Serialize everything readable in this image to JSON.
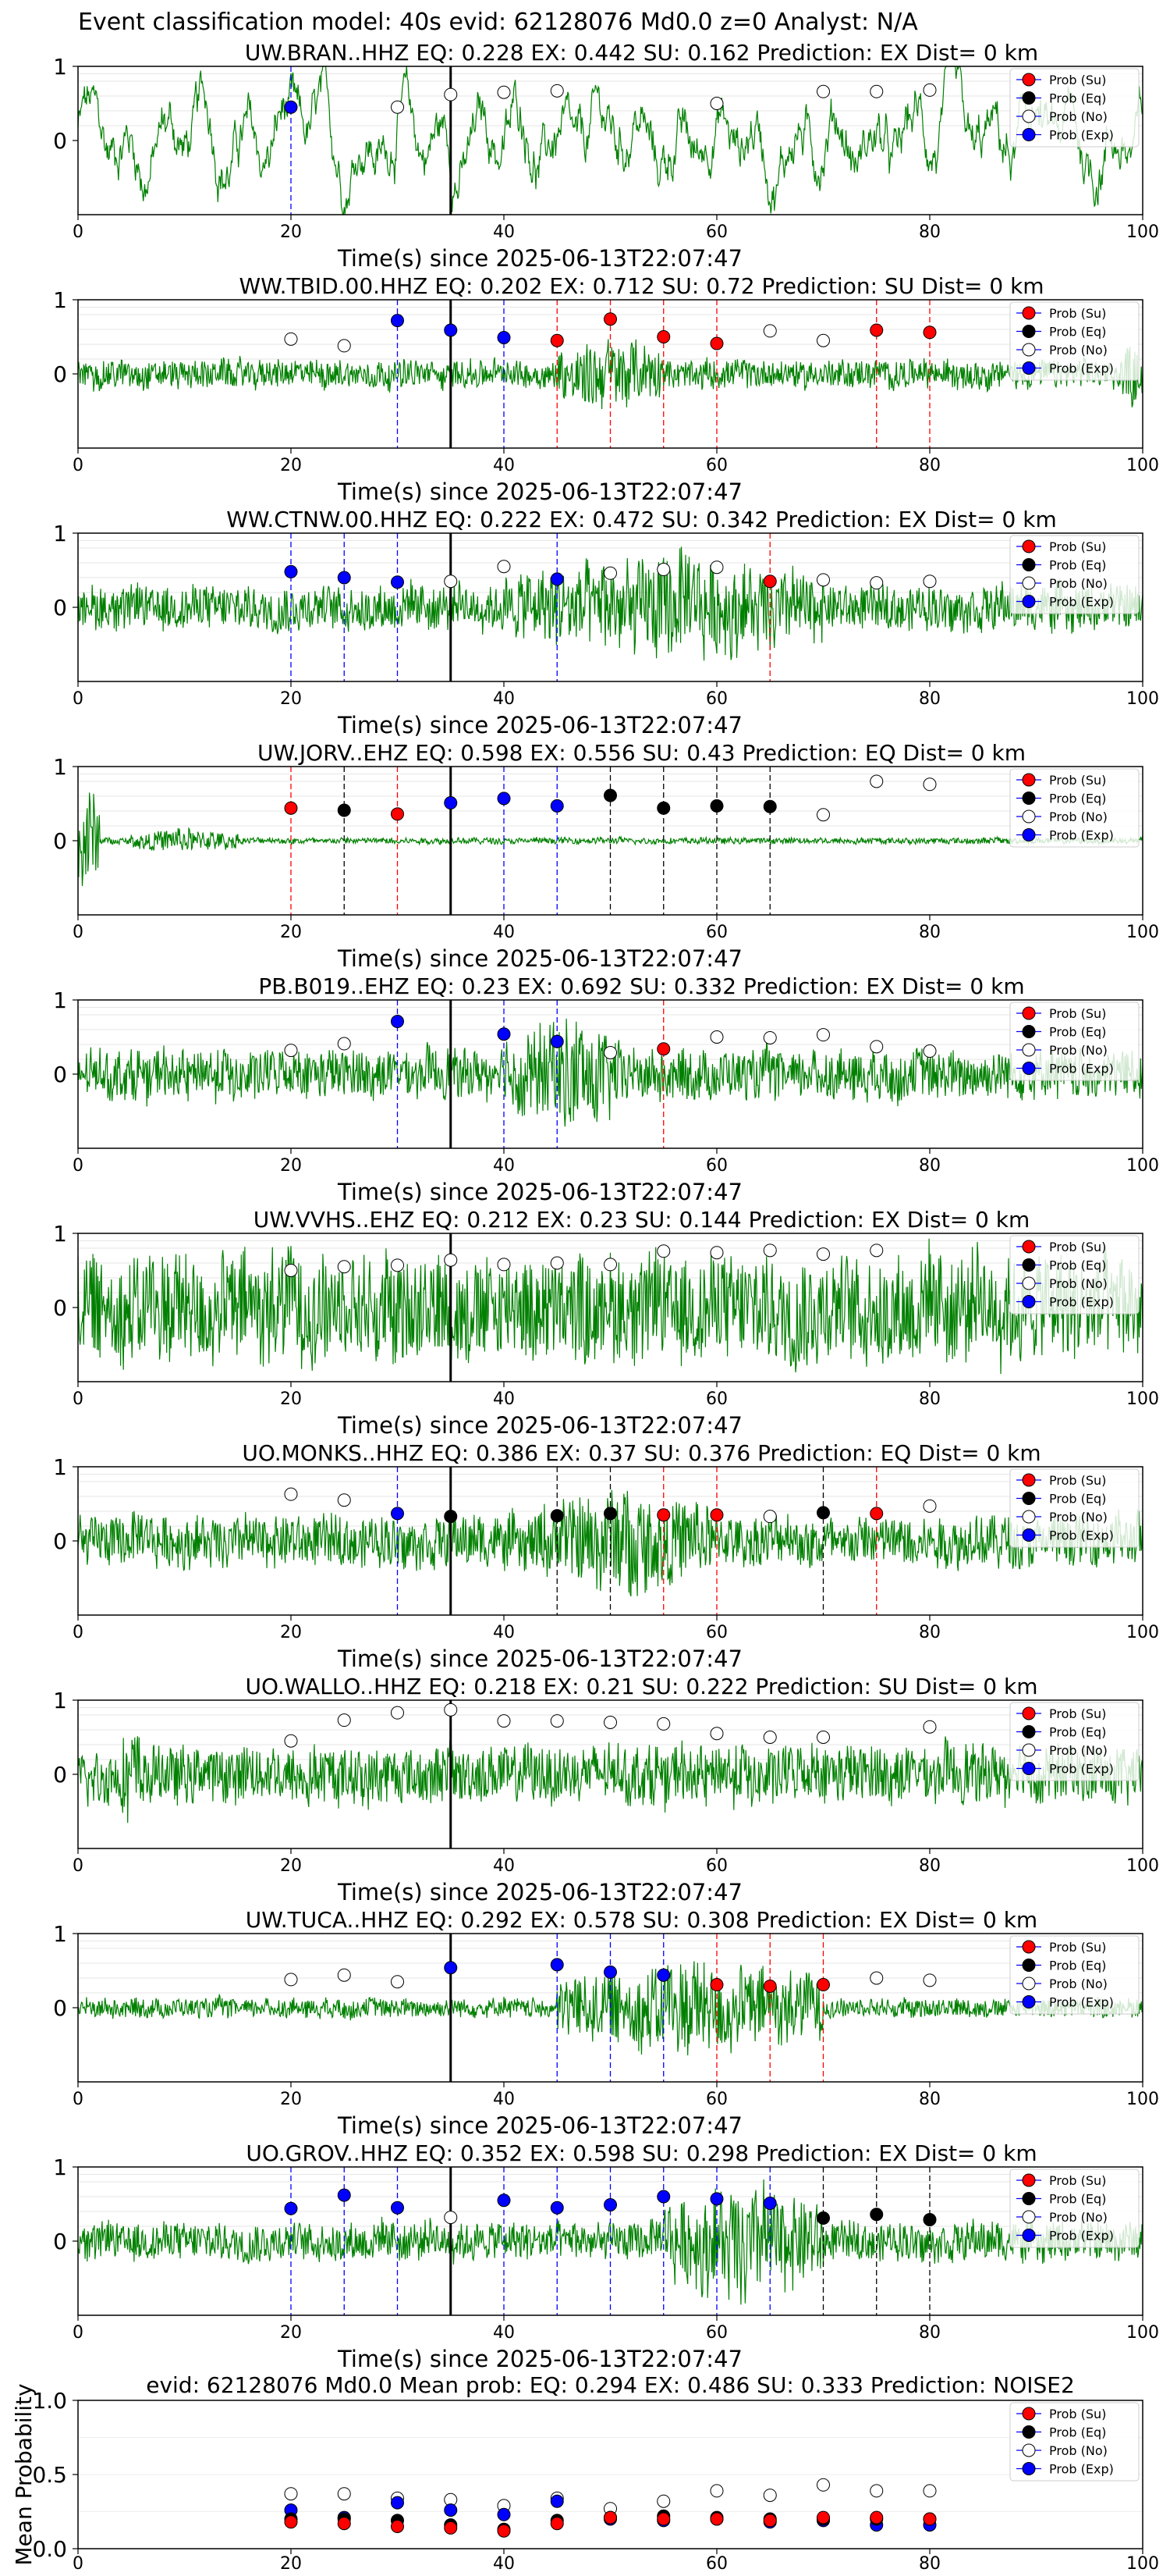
{
  "suptitle": "Event classification model: 40s evid: 62128076 Md0.0 z=0 Analyst: N/A",
  "x_label": "Time(s) since 2025-06-13T22:07:47",
  "x_ticks": [
    "0",
    "20",
    "40",
    "60",
    "80",
    "100"
  ],
  "y_ticks": [
    "0",
    "1"
  ],
  "legend_labels": [
    "Prob (Su)",
    "Prob (Eq)",
    "Prob (No)",
    "Prob (Exp)"
  ],
  "colors": {
    "waveform": "#008000",
    "su": "#ff0000",
    "eq": "#000000",
    "no": "#ffffff",
    "exp": "#0000ff",
    "origin_line": "#000000"
  },
  "chart_data": [
    {
      "type": "line",
      "station": "UW.BRAN..HHZ",
      "title": "UW.BRAN..HHZ   EQ: 0.228  EX: 0.442  SU: 0.162   Prediction: EX    Dist= 0 km",
      "xlim": [
        0,
        100
      ],
      "ylim": [
        -1,
        1
      ],
      "origin_time": 35,
      "legend": "top-right",
      "waveform": {
        "amplitude": 0.7,
        "style": "low_freq",
        "bursts": []
      },
      "probability_points": [
        {
          "x": 20,
          "y": 0.45,
          "class": "exp"
        },
        {
          "x": 30,
          "y": 0.45,
          "class": "no"
        },
        {
          "x": 35,
          "y": 0.62,
          "class": "no"
        },
        {
          "x": 40,
          "y": 0.65,
          "class": "no"
        },
        {
          "x": 45,
          "y": 0.67,
          "class": "no"
        },
        {
          "x": 60,
          "y": 0.5,
          "class": "no"
        },
        {
          "x": 70,
          "y": 0.66,
          "class": "no"
        },
        {
          "x": 75,
          "y": 0.66,
          "class": "no"
        },
        {
          "x": 80,
          "y": 0.68,
          "class": "no"
        }
      ]
    },
    {
      "type": "line",
      "station": "WW.TBID.00.HHZ",
      "title": "WW.TBID.00.HHZ   EQ: 0.202  EX: 0.712  SU: 0.72   Prediction: SU    Dist= 0 km",
      "xlim": [
        0,
        100
      ],
      "ylim": [
        -1,
        1
      ],
      "origin_time": 35,
      "legend": "top-right",
      "waveform": {
        "amplitude": 0.22,
        "style": "noise",
        "bursts": [
          [
            45,
            55,
            0.6
          ],
          [
            98,
            100,
            0.5
          ]
        ]
      },
      "probability_points": [
        {
          "x": 20,
          "y": 0.47,
          "class": "no"
        },
        {
          "x": 25,
          "y": 0.38,
          "class": "no"
        },
        {
          "x": 30,
          "y": 0.72,
          "class": "exp"
        },
        {
          "x": 35,
          "y": 0.59,
          "class": "exp"
        },
        {
          "x": 40,
          "y": 0.49,
          "class": "exp"
        },
        {
          "x": 45,
          "y": 0.45,
          "class": "su"
        },
        {
          "x": 50,
          "y": 0.74,
          "class": "su"
        },
        {
          "x": 55,
          "y": 0.5,
          "class": "su"
        },
        {
          "x": 60,
          "y": 0.41,
          "class": "su"
        },
        {
          "x": 65,
          "y": 0.58,
          "class": "no"
        },
        {
          "x": 70,
          "y": 0.45,
          "class": "no"
        },
        {
          "x": 75,
          "y": 0.59,
          "class": "su"
        },
        {
          "x": 80,
          "y": 0.56,
          "class": "su"
        }
      ]
    },
    {
      "type": "line",
      "station": "WW.CTNW.00.HHZ",
      "title": "WW.CTNW.00.HHZ   EQ: 0.222  EX: 0.472  SU: 0.342   Prediction: EX    Dist= 0 km",
      "xlim": [
        0,
        100
      ],
      "ylim": [
        -1,
        1
      ],
      "origin_time": 35,
      "legend": "top-right",
      "waveform": {
        "amplitude": 0.35,
        "style": "noise",
        "bursts": [
          [
            40,
            70,
            0.85
          ]
        ]
      },
      "probability_points": [
        {
          "x": 20,
          "y": 0.48,
          "class": "exp"
        },
        {
          "x": 25,
          "y": 0.4,
          "class": "exp"
        },
        {
          "x": 30,
          "y": 0.34,
          "class": "exp"
        },
        {
          "x": 35,
          "y": 0.35,
          "class": "no"
        },
        {
          "x": 40,
          "y": 0.55,
          "class": "no"
        },
        {
          "x": 45,
          "y": 0.38,
          "class": "exp"
        },
        {
          "x": 50,
          "y": 0.46,
          "class": "no"
        },
        {
          "x": 55,
          "y": 0.51,
          "class": "no"
        },
        {
          "x": 60,
          "y": 0.54,
          "class": "no"
        },
        {
          "x": 65,
          "y": 0.35,
          "class": "su"
        },
        {
          "x": 70,
          "y": 0.37,
          "class": "no"
        },
        {
          "x": 75,
          "y": 0.33,
          "class": "no"
        },
        {
          "x": 80,
          "y": 0.35,
          "class": "no"
        }
      ]
    },
    {
      "type": "line",
      "station": "UW.JORV..EHZ",
      "title": "UW.JORV..EHZ   EQ: 0.598  EX: 0.556  SU: 0.43   Prediction: EQ    Dist= 0 km",
      "xlim": [
        0,
        100
      ],
      "ylim": [
        -1,
        1
      ],
      "origin_time": 35,
      "legend": "top-right",
      "waveform": {
        "amplitude": 0.05,
        "style": "noise",
        "bursts": [
          [
            0,
            2,
            0.9
          ],
          [
            5,
            15,
            0.2
          ]
        ]
      },
      "probability_points": [
        {
          "x": 20,
          "y": 0.44,
          "class": "su"
        },
        {
          "x": 25,
          "y": 0.41,
          "class": "eq"
        },
        {
          "x": 30,
          "y": 0.36,
          "class": "su"
        },
        {
          "x": 35,
          "y": 0.51,
          "class": "exp"
        },
        {
          "x": 40,
          "y": 0.57,
          "class": "exp"
        },
        {
          "x": 45,
          "y": 0.47,
          "class": "exp"
        },
        {
          "x": 50,
          "y": 0.61,
          "class": "eq"
        },
        {
          "x": 55,
          "y": 0.44,
          "class": "eq"
        },
        {
          "x": 60,
          "y": 0.47,
          "class": "eq"
        },
        {
          "x": 65,
          "y": 0.46,
          "class": "eq"
        },
        {
          "x": 70,
          "y": 0.35,
          "class": "no"
        },
        {
          "x": 75,
          "y": 0.8,
          "class": "no"
        },
        {
          "x": 80,
          "y": 0.76,
          "class": "no"
        }
      ]
    },
    {
      "type": "line",
      "station": "PB.B019..EHZ",
      "title": "PB.B019..EHZ   EQ: 0.23  EX: 0.692  SU: 0.332   Prediction: EX    Dist= 0 km",
      "xlim": [
        0,
        100
      ],
      "ylim": [
        -1,
        1
      ],
      "origin_time": 35,
      "legend": "top-right",
      "waveform": {
        "amplitude": 0.38,
        "style": "noise",
        "bursts": [
          [
            40,
            52,
            0.9
          ]
        ]
      },
      "probability_points": [
        {
          "x": 20,
          "y": 0.32,
          "class": "no"
        },
        {
          "x": 25,
          "y": 0.41,
          "class": "no"
        },
        {
          "x": 30,
          "y": 0.71,
          "class": "exp"
        },
        {
          "x": 40,
          "y": 0.54,
          "class": "exp"
        },
        {
          "x": 45,
          "y": 0.44,
          "class": "exp"
        },
        {
          "x": 50,
          "y": 0.29,
          "class": "no"
        },
        {
          "x": 55,
          "y": 0.34,
          "class": "su"
        },
        {
          "x": 60,
          "y": 0.5,
          "class": "no"
        },
        {
          "x": 65,
          "y": 0.49,
          "class": "no"
        },
        {
          "x": 70,
          "y": 0.53,
          "class": "no"
        },
        {
          "x": 75,
          "y": 0.37,
          "class": "no"
        },
        {
          "x": 80,
          "y": 0.31,
          "class": "no"
        }
      ]
    },
    {
      "type": "line",
      "station": "UW.VVHS..EHZ",
      "title": "UW.VVHS..EHZ   EQ: 0.212  EX: 0.23  SU: 0.144   Prediction: EX    Dist= 0 km",
      "xlim": [
        0,
        100
      ],
      "ylim": [
        -1,
        1
      ],
      "origin_time": 35,
      "legend": "top-right",
      "waveform": {
        "amplitude": 0.85,
        "style": "noise",
        "bursts": []
      },
      "probability_points": [
        {
          "x": 20,
          "y": 0.5,
          "class": "no"
        },
        {
          "x": 25,
          "y": 0.55,
          "class": "no"
        },
        {
          "x": 30,
          "y": 0.57,
          "class": "no"
        },
        {
          "x": 35,
          "y": 0.64,
          "class": "no"
        },
        {
          "x": 40,
          "y": 0.58,
          "class": "no"
        },
        {
          "x": 45,
          "y": 0.6,
          "class": "no"
        },
        {
          "x": 50,
          "y": 0.58,
          "class": "no"
        },
        {
          "x": 55,
          "y": 0.76,
          "class": "no"
        },
        {
          "x": 60,
          "y": 0.74,
          "class": "no"
        },
        {
          "x": 65,
          "y": 0.77,
          "class": "no"
        },
        {
          "x": 70,
          "y": 0.72,
          "class": "no"
        },
        {
          "x": 75,
          "y": 0.77,
          "class": "no"
        }
      ]
    },
    {
      "type": "line",
      "station": "UO.MONKS..HHZ",
      "title": "UO.MONKS..HHZ   EQ: 0.386  EX: 0.37  SU: 0.376   Prediction: EQ    Dist= 0 km",
      "xlim": [
        0,
        100
      ],
      "ylim": [
        -1,
        1
      ],
      "origin_time": 35,
      "legend": "top-right",
      "waveform": {
        "amplitude": 0.4,
        "style": "noise",
        "bursts": [
          [
            43,
            60,
            0.85
          ]
        ]
      },
      "probability_points": [
        {
          "x": 20,
          "y": 0.63,
          "class": "no"
        },
        {
          "x": 25,
          "y": 0.55,
          "class": "no"
        },
        {
          "x": 30,
          "y": 0.37,
          "class": "exp"
        },
        {
          "x": 35,
          "y": 0.33,
          "class": "eq"
        },
        {
          "x": 45,
          "y": 0.34,
          "class": "eq"
        },
        {
          "x": 50,
          "y": 0.37,
          "class": "eq"
        },
        {
          "x": 55,
          "y": 0.35,
          "class": "su"
        },
        {
          "x": 60,
          "y": 0.35,
          "class": "su"
        },
        {
          "x": 65,
          "y": 0.33,
          "class": "no"
        },
        {
          "x": 70,
          "y": 0.38,
          "class": "eq"
        },
        {
          "x": 75,
          "y": 0.37,
          "class": "su"
        },
        {
          "x": 80,
          "y": 0.47,
          "class": "no"
        }
      ]
    },
    {
      "type": "line",
      "station": "UO.WALLO..HHZ",
      "title": "UO.WALLO..HHZ   EQ: 0.218  EX: 0.21  SU: 0.222   Prediction: SU    Dist= 0 km",
      "xlim": [
        0,
        100
      ],
      "ylim": [
        -1,
        1
      ],
      "origin_time": 35,
      "legend": "top-right",
      "waveform": {
        "amplitude": 0.45,
        "style": "noise",
        "bursts": [
          [
            4,
            6,
            0.95
          ]
        ]
      },
      "probability_points": [
        {
          "x": 20,
          "y": 0.45,
          "class": "no"
        },
        {
          "x": 25,
          "y": 0.73,
          "class": "no"
        },
        {
          "x": 30,
          "y": 0.83,
          "class": "no"
        },
        {
          "x": 35,
          "y": 0.87,
          "class": "no"
        },
        {
          "x": 40,
          "y": 0.72,
          "class": "no"
        },
        {
          "x": 45,
          "y": 0.72,
          "class": "no"
        },
        {
          "x": 50,
          "y": 0.7,
          "class": "no"
        },
        {
          "x": 55,
          "y": 0.68,
          "class": "no"
        },
        {
          "x": 60,
          "y": 0.55,
          "class": "no"
        },
        {
          "x": 65,
          "y": 0.5,
          "class": "no"
        },
        {
          "x": 70,
          "y": 0.5,
          "class": "no"
        },
        {
          "x": 80,
          "y": 0.64,
          "class": "no"
        }
      ]
    },
    {
      "type": "line",
      "station": "UW.TUCA..HHZ",
      "title": "UW.TUCA..HHZ   EQ: 0.292  EX: 0.578  SU: 0.308   Prediction: EX    Dist= 0 km",
      "xlim": [
        0,
        100
      ],
      "ylim": [
        -1,
        1
      ],
      "origin_time": 35,
      "legend": "top-right",
      "waveform": {
        "amplitude": 0.15,
        "style": "noise",
        "bursts": [
          [
            45,
            70,
            0.75
          ]
        ]
      },
      "probability_points": [
        {
          "x": 20,
          "y": 0.38,
          "class": "no"
        },
        {
          "x": 25,
          "y": 0.44,
          "class": "no"
        },
        {
          "x": 30,
          "y": 0.35,
          "class": "no"
        },
        {
          "x": 35,
          "y": 0.54,
          "class": "exp"
        },
        {
          "x": 45,
          "y": 0.58,
          "class": "exp"
        },
        {
          "x": 50,
          "y": 0.48,
          "class": "exp"
        },
        {
          "x": 55,
          "y": 0.44,
          "class": "exp"
        },
        {
          "x": 60,
          "y": 0.31,
          "class": "su"
        },
        {
          "x": 65,
          "y": 0.29,
          "class": "su"
        },
        {
          "x": 70,
          "y": 0.31,
          "class": "su"
        },
        {
          "x": 75,
          "y": 0.4,
          "class": "no"
        },
        {
          "x": 80,
          "y": 0.37,
          "class": "no"
        }
      ]
    },
    {
      "type": "line",
      "station": "UO.GROV..HHZ",
      "title": "UO.GROV..HHZ   EQ: 0.352  EX: 0.598  SU: 0.298   Prediction: EX    Dist= 0 km",
      "xlim": [
        0,
        100
      ],
      "ylim": [
        -1,
        1
      ],
      "origin_time": 35,
      "legend": "top-right",
      "waveform": {
        "amplitude": 0.3,
        "style": "noise",
        "bursts": [
          [
            55,
            70,
            0.95
          ]
        ]
      },
      "probability_points": [
        {
          "x": 20,
          "y": 0.44,
          "class": "exp"
        },
        {
          "x": 25,
          "y": 0.62,
          "class": "exp"
        },
        {
          "x": 30,
          "y": 0.45,
          "class": "exp"
        },
        {
          "x": 35,
          "y": 0.32,
          "class": "no"
        },
        {
          "x": 40,
          "y": 0.55,
          "class": "exp"
        },
        {
          "x": 45,
          "y": 0.45,
          "class": "exp"
        },
        {
          "x": 50,
          "y": 0.49,
          "class": "exp"
        },
        {
          "x": 55,
          "y": 0.6,
          "class": "exp"
        },
        {
          "x": 60,
          "y": 0.57,
          "class": "exp"
        },
        {
          "x": 65,
          "y": 0.51,
          "class": "exp"
        },
        {
          "x": 70,
          "y": 0.31,
          "class": "eq"
        },
        {
          "x": 75,
          "y": 0.36,
          "class": "eq"
        },
        {
          "x": 80,
          "y": 0.29,
          "class": "eq"
        }
      ]
    },
    {
      "type": "scatter",
      "title": "evid: 62128076  Md0.0   Mean prob:   EQ: 0.294  EX: 0.486  SU: 0.333   Prediction: NOISE2",
      "ylabel": "Mean Probability",
      "xlim": [
        0,
        100
      ],
      "ylim": [
        0,
        1
      ],
      "y_ticks": [
        "0.0",
        "0.5",
        "1.0"
      ],
      "legend": "top-right",
      "x": [
        20,
        25,
        30,
        35,
        40,
        45,
        50,
        55,
        60,
        65,
        70,
        75,
        80
      ],
      "series": [
        {
          "name": "Prob (No)",
          "class": "no",
          "values": [
            0.37,
            0.37,
            0.34,
            0.33,
            0.29,
            0.34,
            0.27,
            0.32,
            0.39,
            0.36,
            0.43,
            0.39,
            0.39
          ]
        },
        {
          "name": "Prob (Exp)",
          "class": "exp",
          "values": [
            0.26,
            0.21,
            0.31,
            0.26,
            0.23,
            0.32,
            0.2,
            0.19,
            0.2,
            0.18,
            0.19,
            0.16,
            0.16
          ]
        },
        {
          "name": "Prob (Eq)",
          "class": "eq",
          "values": [
            0.2,
            0.2,
            0.19,
            0.16,
            0.13,
            0.19,
            0.21,
            0.22,
            0.21,
            0.2,
            0.2,
            0.2,
            0.2
          ]
        },
        {
          "name": "Prob (Su)",
          "class": "su",
          "values": [
            0.18,
            0.17,
            0.15,
            0.14,
            0.12,
            0.17,
            0.21,
            0.2,
            0.2,
            0.19,
            0.21,
            0.21,
            0.2
          ]
        }
      ]
    }
  ]
}
